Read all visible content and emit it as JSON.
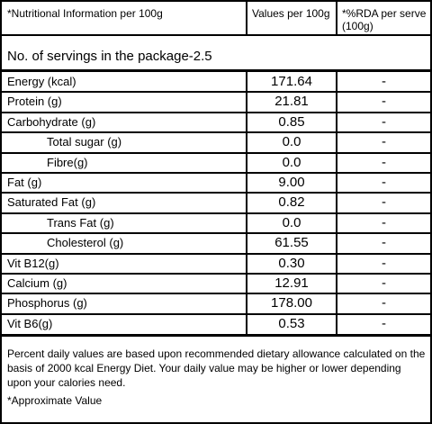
{
  "header": {
    "nutrient": "*Nutritional Information per 100g",
    "value": "Values per 100g",
    "rda": "*%RDA per serve (100g)"
  },
  "servings": "No. of servings in the package-2.5",
  "rows": [
    {
      "label": "Energy (kcal)",
      "value": "171.64",
      "rda": "-"
    },
    {
      "label": "Protein (g)",
      "value": "21.81",
      "rda": "-"
    },
    {
      "label": "Carbohydrate (g)",
      "value": "0.85",
      "rda": "-"
    },
    {
      "label": "Total sugar (g)",
      "value": "0.0",
      "rda": "-"
    },
    {
      "label": "Fibre(g)",
      "value": "0.0",
      "rda": "-"
    },
    {
      "label": "Fat (g)",
      "value": "9.00",
      "rda": "-"
    },
    {
      "label": "Saturated Fat (g)",
      "value": "0.82",
      "rda": "-"
    },
    {
      "label": "Trans Fat (g)",
      "value": "0.0",
      "rda": "-"
    },
    {
      "label": "Cholesterol (g)",
      "value": "61.55",
      "rda": "-"
    },
    {
      "label": "Vit B12(g)",
      "value": "0.30",
      "rda": "-"
    },
    {
      "label": "Calcium (g)",
      "value": "12.91",
      "rda": "-"
    },
    {
      "label": "Phosphorus (g)",
      "value": "178.00",
      "rda": "-"
    },
    {
      "label": "Vit B6(g)",
      "value": "0.53",
      "rda": "-"
    }
  ],
  "footer": {
    "note": "Percent daily values are based upon recommended dietary allowance calculated on the basis of 2000 kcal Energy Diet. Your daily value may be higher or lower depending upon your calories need.",
    "approx": "*Approximate Value"
  }
}
